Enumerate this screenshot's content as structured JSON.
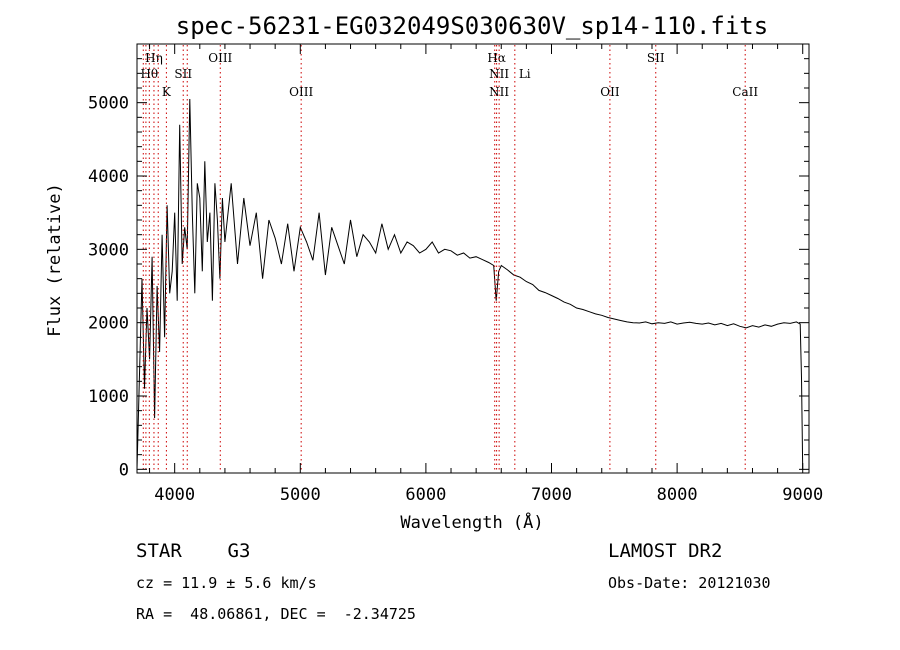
{
  "chart_data": {
    "type": "line",
    "title": "spec-56231-EG032049S030630V_sp14-110.fits",
    "xlabel": "Wavelength (Å)",
    "ylabel": "Flux (relative)",
    "xlim": [
      3700,
      9050
    ],
    "ylim": [
      -50,
      5800
    ],
    "xticks": [
      4000,
      5000,
      6000,
      7000,
      8000,
      9000
    ],
    "yticks": [
      0,
      1000,
      2000,
      3000,
      4000,
      5000
    ],
    "grid": false,
    "line_color": "#000000",
    "marker_color": "#cc0000",
    "series": [
      {
        "x": [
          3700,
          3720,
          3740,
          3760,
          3780,
          3800,
          3820,
          3840,
          3860,
          3880,
          3900,
          3920,
          3940,
          3960,
          3980,
          4000,
          4020,
          4040,
          4060,
          4080,
          4100,
          4120,
          4140,
          4160,
          4180,
          4200,
          4220,
          4240,
          4260,
          4280,
          4300,
          4320,
          4340,
          4360,
          4380,
          4400,
          4450,
          4500,
          4550,
          4600,
          4650,
          4700,
          4750,
          4800,
          4850,
          4900,
          4950,
          5000,
          5050,
          5100,
          5150,
          5200,
          5250,
          5300,
          5350,
          5400,
          5450,
          5500,
          5550,
          5600,
          5650,
          5700,
          5750,
          5800,
          5850,
          5900,
          5950,
          6000,
          6050,
          6100,
          6150,
          6200,
          6250,
          6300,
          6350,
          6400,
          6450,
          6500,
          6540,
          6560,
          6580,
          6600,
          6650,
          6700,
          6750,
          6800,
          6850,
          6900,
          6950,
          7000,
          7050,
          7100,
          7150,
          7200,
          7250,
          7300,
          7350,
          7400,
          7450,
          7500,
          7550,
          7600,
          7650,
          7700,
          7750,
          7800,
          7850,
          7900,
          7950,
          8000,
          8050,
          8100,
          8150,
          8200,
          8250,
          8300,
          8350,
          8400,
          8450,
          8500,
          8550,
          8600,
          8650,
          8700,
          8750,
          8800,
          8850,
          8900,
          8950,
          8980,
          8990,
          9000
        ],
        "y": [
          0,
          1300,
          2600,
          1100,
          2200,
          1500,
          2900,
          700,
          2500,
          1600,
          3200,
          1800,
          3600,
          2400,
          2700,
          3500,
          2300,
          4700,
          2800,
          3300,
          3000,
          5050,
          3500,
          2400,
          3900,
          3700,
          2700,
          4200,
          3100,
          3500,
          2300,
          3900,
          3400,
          2600,
          3700,
          3100,
          3900,
          2800,
          3700,
          3050,
          3500,
          2600,
          3400,
          3150,
          2800,
          3350,
          2700,
          3300,
          3100,
          2850,
          3500,
          2650,
          3300,
          3050,
          2800,
          3400,
          2900,
          3200,
          3100,
          2950,
          3350,
          3000,
          3200,
          2950,
          3100,
          3050,
          2950,
          3000,
          3100,
          2950,
          3000,
          2980,
          2920,
          2950,
          2880,
          2900,
          2860,
          2820,
          2780,
          2300,
          2700,
          2780,
          2720,
          2650,
          2620,
          2560,
          2520,
          2440,
          2410,
          2370,
          2330,
          2280,
          2250,
          2200,
          2180,
          2150,
          2120,
          2100,
          2070,
          2050,
          2030,
          2010,
          2000,
          1995,
          2010,
          1985,
          2000,
          1990,
          2010,
          1980,
          1995,
          2005,
          1990,
          1980,
          1995,
          1970,
          1990,
          1960,
          1985,
          1950,
          1930,
          1960,
          1940,
          1970,
          1950,
          1980,
          2000,
          1990,
          2010,
          1980,
          1250,
          0
        ]
      }
    ],
    "line_markers": [
      {
        "x": 3750,
        "labels": []
      },
      {
        "x": 3771,
        "labels": []
      },
      {
        "x": 3798,
        "labels": [
          "Hθ"
        ]
      },
      {
        "x": 3835,
        "labels": [
          "Hη"
        ]
      },
      {
        "x": 3869,
        "labels": []
      },
      {
        "x": 3934,
        "labels": [
          "K"
        ]
      },
      {
        "x": 4068,
        "labels": [
          "SII"
        ]
      },
      {
        "x": 4100,
        "labels": []
      },
      {
        "x": 4363,
        "labels": [
          "OIII"
        ]
      },
      {
        "x": 5007,
        "labels": [
          "OIII"
        ]
      },
      {
        "x": 6548,
        "labels": []
      },
      {
        "x": 6563,
        "labels": [
          "Hα"
        ]
      },
      {
        "x": 6583,
        "labels": [
          "NII",
          "NII"
        ]
      },
      {
        "x": 6708,
        "labels": [
          "Li"
        ]
      },
      {
        "x": 7465,
        "labels": [
          "OII"
        ]
      },
      {
        "x": 7830,
        "labels": [
          "SII"
        ]
      },
      {
        "x": 8542,
        "labels": [
          "CaII"
        ]
      }
    ]
  },
  "info": {
    "object": "STAR    G3",
    "cz": "cz = 11.9 ± 5.6 km/s",
    "coords": "RA =  48.06861, DEC =  -2.34725",
    "survey": "LAMOST DR2",
    "obs_date": "Obs-Date: 20121030"
  }
}
